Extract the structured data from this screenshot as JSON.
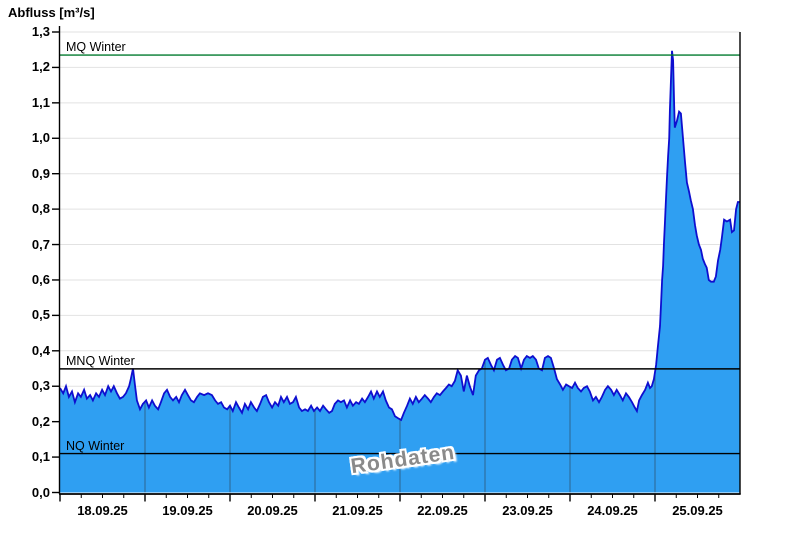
{
  "title": "Abfluss [m³/s]",
  "watermark": "Rohdaten",
  "colors": {
    "area_fill": "#2f9ff2",
    "area_line": "#0e0ecf",
    "mq_line_green": "#007a2e",
    "reference_black": "#000000",
    "h_grid": "#e2e2e2",
    "v_grid": "#2e2e2e",
    "axis": "#000000",
    "watermark_gray": "#8a8a8a"
  },
  "chart_data": {
    "type": "area",
    "title": "Abfluss [m³/s]",
    "ylabel": "Abfluss [m³/s]",
    "xlabel": "",
    "ylim": [
      0,
      1.3
    ],
    "x_range_hours": [
      0,
      192
    ],
    "x_day_width_hours": 24,
    "grid": {
      "horizontal": true,
      "vertical_day_lines_clipped_to_fill": true
    },
    "y_ticks": [
      "0,0",
      "0,1",
      "0,2",
      "0,3",
      "0,4",
      "0,5",
      "0,6",
      "0,7",
      "0,8",
      "0,9",
      "1,0",
      "1,1",
      "1,2",
      "1,3"
    ],
    "y_tick_values": [
      0,
      0.1,
      0.2,
      0.3,
      0.4,
      0.5,
      0.6,
      0.7,
      0.8,
      0.9,
      1.0,
      1.1,
      1.2,
      1.3
    ],
    "x_labels": [
      "18.09.25",
      "19.09.25",
      "20.09.25",
      "21.09.25",
      "22.09.25",
      "23.09.25",
      "24.09.25",
      "25.09.25"
    ],
    "reference_lines": [
      {
        "label": "MQ Winter",
        "value": 1.235,
        "color": "#007a2e"
      },
      {
        "label": "MNQ Winter",
        "value": 0.349,
        "color": "#000000"
      },
      {
        "label": "NQ Winter",
        "value": 0.11,
        "color": "#000000"
      }
    ],
    "series": [
      {
        "name": "Abfluss Rohdaten",
        "points": [
          [
            0,
            0.295
          ],
          [
            0.9,
            0.28
          ],
          [
            1.7,
            0.3
          ],
          [
            2.5,
            0.27
          ],
          [
            3.4,
            0.285
          ],
          [
            4.2,
            0.255
          ],
          [
            5.1,
            0.28
          ],
          [
            5.9,
            0.27
          ],
          [
            6.8,
            0.29
          ],
          [
            7.6,
            0.265
          ],
          [
            8.5,
            0.275
          ],
          [
            9.3,
            0.26
          ],
          [
            10.2,
            0.28
          ],
          [
            11,
            0.27
          ],
          [
            11.9,
            0.29
          ],
          [
            12.7,
            0.275
          ],
          [
            13.6,
            0.3
          ],
          [
            14.4,
            0.285
          ],
          [
            15.2,
            0.3
          ],
          [
            16.1,
            0.28
          ],
          [
            16.9,
            0.265
          ],
          [
            17.8,
            0.27
          ],
          [
            18.6,
            0.28
          ],
          [
            19.5,
            0.3
          ],
          [
            20,
            0.32
          ],
          [
            20.6,
            0.35
          ],
          [
            21.2,
            0.3
          ],
          [
            21.7,
            0.26
          ],
          [
            22.6,
            0.235
          ],
          [
            23.4,
            0.25
          ],
          [
            24.3,
            0.26
          ],
          [
            25.1,
            0.24
          ],
          [
            26,
            0.26
          ],
          [
            26.8,
            0.245
          ],
          [
            27.7,
            0.235
          ],
          [
            28.5,
            0.255
          ],
          [
            29.4,
            0.28
          ],
          [
            30.2,
            0.29
          ],
          [
            31.1,
            0.27
          ],
          [
            31.9,
            0.26
          ],
          [
            32.8,
            0.27
          ],
          [
            33.6,
            0.255
          ],
          [
            34.4,
            0.275
          ],
          [
            35.3,
            0.29
          ],
          [
            36.1,
            0.275
          ],
          [
            37,
            0.26
          ],
          [
            37.8,
            0.255
          ],
          [
            38.7,
            0.27
          ],
          [
            39.5,
            0.28
          ],
          [
            40.7,
            0.275
          ],
          [
            41.8,
            0.28
          ],
          [
            42.9,
            0.275
          ],
          [
            43.8,
            0.26
          ],
          [
            44.6,
            0.25
          ],
          [
            45.5,
            0.255
          ],
          [
            46.3,
            0.24
          ],
          [
            47.2,
            0.235
          ],
          [
            48,
            0.245
          ],
          [
            48.8,
            0.23
          ],
          [
            49.7,
            0.255
          ],
          [
            50.5,
            0.24
          ],
          [
            51.4,
            0.225
          ],
          [
            52.2,
            0.25
          ],
          [
            53.1,
            0.235
          ],
          [
            53.9,
            0.255
          ],
          [
            54.8,
            0.24
          ],
          [
            55.6,
            0.23
          ],
          [
            56.5,
            0.25
          ],
          [
            57.3,
            0.27
          ],
          [
            58.2,
            0.275
          ],
          [
            59,
            0.255
          ],
          [
            59.9,
            0.24
          ],
          [
            60.7,
            0.255
          ],
          [
            61.6,
            0.245
          ],
          [
            62.4,
            0.27
          ],
          [
            63.2,
            0.255
          ],
          [
            64.1,
            0.27
          ],
          [
            64.9,
            0.25
          ],
          [
            65.8,
            0.255
          ],
          [
            66.6,
            0.27
          ],
          [
            67.5,
            0.24
          ],
          [
            68.3,
            0.23
          ],
          [
            69.2,
            0.235
          ],
          [
            70,
            0.23
          ],
          [
            70.9,
            0.245
          ],
          [
            71.7,
            0.23
          ],
          [
            72.6,
            0.24
          ],
          [
            73.4,
            0.23
          ],
          [
            74.3,
            0.245
          ],
          [
            75.1,
            0.235
          ],
          [
            76,
            0.225
          ],
          [
            76.8,
            0.23
          ],
          [
            77.6,
            0.25
          ],
          [
            78.5,
            0.26
          ],
          [
            79.3,
            0.255
          ],
          [
            80.2,
            0.26
          ],
          [
            81,
            0.24
          ],
          [
            81.9,
            0.26
          ],
          [
            82.7,
            0.245
          ],
          [
            83.6,
            0.255
          ],
          [
            84.4,
            0.25
          ],
          [
            85.3,
            0.265
          ],
          [
            86.1,
            0.255
          ],
          [
            87,
            0.27
          ],
          [
            87.8,
            0.285
          ],
          [
            88.6,
            0.265
          ],
          [
            89.5,
            0.285
          ],
          [
            90.3,
            0.27
          ],
          [
            91.2,
            0.285
          ],
          [
            92,
            0.26
          ],
          [
            92.9,
            0.24
          ],
          [
            93.7,
            0.235
          ],
          [
            94.6,
            0.215
          ],
          [
            95.4,
            0.21
          ],
          [
            96.3,
            0.205
          ],
          [
            97.1,
            0.225
          ],
          [
            98,
            0.245
          ],
          [
            98.8,
            0.265
          ],
          [
            99.6,
            0.25
          ],
          [
            100.5,
            0.27
          ],
          [
            101.3,
            0.255
          ],
          [
            102.2,
            0.265
          ],
          [
            103,
            0.275
          ],
          [
            103.9,
            0.265
          ],
          [
            104.7,
            0.255
          ],
          [
            105.6,
            0.27
          ],
          [
            106.4,
            0.28
          ],
          [
            107.3,
            0.275
          ],
          [
            108.1,
            0.285
          ],
          [
            109,
            0.295
          ],
          [
            109.8,
            0.305
          ],
          [
            110.6,
            0.3
          ],
          [
            111.5,
            0.315
          ],
          [
            112.3,
            0.345
          ],
          [
            113.2,
            0.33
          ],
          [
            114,
            0.285
          ],
          [
            114.9,
            0.33
          ],
          [
            115.7,
            0.3
          ],
          [
            116.6,
            0.275
          ],
          [
            117.4,
            0.33
          ],
          [
            118.3,
            0.345
          ],
          [
            119.1,
            0.35
          ],
          [
            120,
            0.375
          ],
          [
            120.8,
            0.38
          ],
          [
            121.7,
            0.36
          ],
          [
            122.5,
            0.345
          ],
          [
            123.4,
            0.375
          ],
          [
            124.2,
            0.38
          ],
          [
            125.1,
            0.36
          ],
          [
            125.9,
            0.345
          ],
          [
            126.8,
            0.35
          ],
          [
            127.6,
            0.375
          ],
          [
            128.5,
            0.385
          ],
          [
            129.3,
            0.38
          ],
          [
            130.2,
            0.35
          ],
          [
            131,
            0.375
          ],
          [
            131.8,
            0.385
          ],
          [
            132.7,
            0.38
          ],
          [
            133.5,
            0.385
          ],
          [
            134.4,
            0.375
          ],
          [
            135.2,
            0.35
          ],
          [
            136.1,
            0.345
          ],
          [
            136.9,
            0.38
          ],
          [
            137.8,
            0.385
          ],
          [
            138.6,
            0.38
          ],
          [
            139.5,
            0.35
          ],
          [
            140.3,
            0.32
          ],
          [
            141.2,
            0.305
          ],
          [
            142,
            0.29
          ],
          [
            142.9,
            0.305
          ],
          [
            143.7,
            0.3
          ],
          [
            144.6,
            0.295
          ],
          [
            145.4,
            0.31
          ],
          [
            146.2,
            0.295
          ],
          [
            147.1,
            0.285
          ],
          [
            147.9,
            0.295
          ],
          [
            148.8,
            0.3
          ],
          [
            149.6,
            0.285
          ],
          [
            150.5,
            0.26
          ],
          [
            151.3,
            0.27
          ],
          [
            152.2,
            0.255
          ],
          [
            153,
            0.27
          ],
          [
            153.9,
            0.29
          ],
          [
            154.7,
            0.3
          ],
          [
            155.6,
            0.29
          ],
          [
            156.4,
            0.275
          ],
          [
            157.2,
            0.29
          ],
          [
            158.1,
            0.275
          ],
          [
            158.9,
            0.26
          ],
          [
            159.8,
            0.28
          ],
          [
            160.6,
            0.27
          ],
          [
            161.5,
            0.255
          ],
          [
            162.3,
            0.24
          ],
          [
            162.9,
            0.23
          ],
          [
            163.5,
            0.26
          ],
          [
            164.3,
            0.275
          ],
          [
            165.2,
            0.29
          ],
          [
            166,
            0.31
          ],
          [
            166.6,
            0.295
          ],
          [
            167.1,
            0.3
          ],
          [
            167.7,
            0.32
          ],
          [
            168.3,
            0.36
          ],
          [
            168.8,
            0.41
          ],
          [
            169.4,
            0.47
          ],
          [
            169.7,
            0.53
          ],
          [
            170,
            0.6
          ],
          [
            170.3,
            0.64
          ],
          [
            170.5,
            0.7
          ],
          [
            170.8,
            0.76
          ],
          [
            171.1,
            0.83
          ],
          [
            171.4,
            0.89
          ],
          [
            171.7,
            0.95
          ],
          [
            172,
            1.0
          ],
          [
            172.2,
            1.08
          ],
          [
            172.5,
            1.16
          ],
          [
            172.8,
            1.247
          ],
          [
            173.1,
            1.22
          ],
          [
            173.4,
            1.1
          ],
          [
            173.6,
            1.03
          ],
          [
            174.2,
            1.05
          ],
          [
            174.8,
            1.075
          ],
          [
            175.3,
            1.07
          ],
          [
            175.9,
            1.0
          ],
          [
            176.5,
            0.93
          ],
          [
            177,
            0.875
          ],
          [
            177.6,
            0.85
          ],
          [
            178.1,
            0.825
          ],
          [
            178.7,
            0.8
          ],
          [
            179.3,
            0.755
          ],
          [
            179.8,
            0.725
          ],
          [
            180.4,
            0.7
          ],
          [
            181,
            0.685
          ],
          [
            181.5,
            0.66
          ],
          [
            182.1,
            0.645
          ],
          [
            182.6,
            0.635
          ],
          [
            183.2,
            0.6
          ],
          [
            183.8,
            0.595
          ],
          [
            184.6,
            0.595
          ],
          [
            185.2,
            0.61
          ],
          [
            185.8,
            0.655
          ],
          [
            186.4,
            0.685
          ],
          [
            186.9,
            0.72
          ],
          [
            187.5,
            0.77
          ],
          [
            188.3,
            0.765
          ],
          [
            189.2,
            0.77
          ],
          [
            189.7,
            0.735
          ],
          [
            190.3,
            0.74
          ],
          [
            190.9,
            0.8
          ],
          [
            191.4,
            0.82
          ],
          [
            192,
            0.82
          ]
        ]
      }
    ]
  }
}
